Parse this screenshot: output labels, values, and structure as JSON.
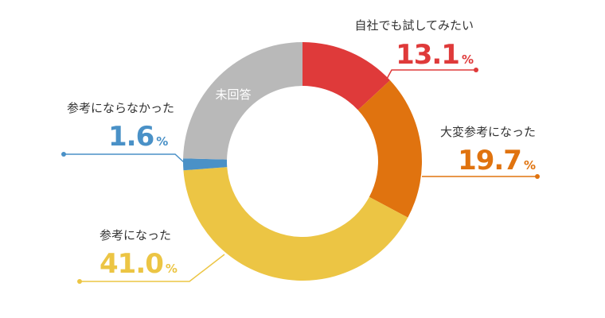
{
  "chart_data": {
    "type": "pie",
    "donut": true,
    "unit": "%",
    "slices": [
      {
        "label": "自社でも試してみたい",
        "value": 13.1,
        "value_text": "13.1",
        "color": "#df3a3a"
      },
      {
        "label": "大変参考になった",
        "value": 19.7,
        "value_text": "19.7",
        "color": "#e0730f"
      },
      {
        "label": "参考になった",
        "value": 41.0,
        "value_text": "41.0",
        "color": "#ecc544"
      },
      {
        "label": "参考にならなかった",
        "value": 1.6,
        "value_text": "1.6",
        "color": "#4a91c7"
      },
      {
        "label": "未回答",
        "value": 24.6,
        "value_text": "",
        "color": "#b9b9b9"
      }
    ]
  }
}
